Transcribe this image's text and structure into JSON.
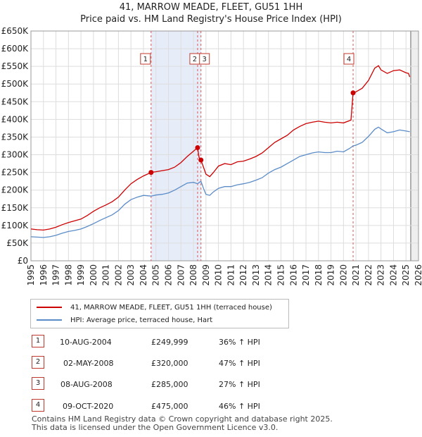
{
  "title_line1": "41, MARROW MEADE, FLEET, GU51 1HH",
  "title_line2": "Price paid vs. HM Land Registry's House Price Index (HPI)",
  "chart_data": {
    "type": "line",
    "xlim": [
      1995,
      2026
    ],
    "ylim": [
      0,
      650000
    ],
    "y_ticks": [
      {
        "value": 0,
        "label": "£0"
      },
      {
        "value": 50000,
        "label": "£50K"
      },
      {
        "value": 100000,
        "label": "£100K"
      },
      {
        "value": 150000,
        "label": "£150K"
      },
      {
        "value": 200000,
        "label": "£200K"
      },
      {
        "value": 250000,
        "label": "£250K"
      },
      {
        "value": 300000,
        "label": "£300K"
      },
      {
        "value": 350000,
        "label": "£350K"
      },
      {
        "value": 400000,
        "label": "£400K"
      },
      {
        "value": 450000,
        "label": "£450K"
      },
      {
        "value": 500000,
        "label": "£500K"
      },
      {
        "value": 550000,
        "label": "£550K"
      },
      {
        "value": 600000,
        "label": "£600K"
      },
      {
        "value": 650000,
        "label": "£650K"
      }
    ],
    "x_ticks": [
      "1995",
      "1996",
      "1997",
      "1998",
      "1999",
      "2000",
      "2001",
      "2002",
      "2003",
      "2004",
      "2005",
      "2006",
      "2007",
      "2008",
      "2009",
      "2010",
      "2011",
      "2012",
      "2013",
      "2014",
      "2015",
      "2016",
      "2017",
      "2018",
      "2019",
      "2020",
      "2021",
      "2022",
      "2023",
      "2024",
      "2025",
      "2026"
    ],
    "series": [
      {
        "name": "41, MARROW MEADE, FLEET, GU51 1HH (terraced house)",
        "color": "#cc0000",
        "points": [
          [
            1995.0,
            90000
          ],
          [
            1995.5,
            88000
          ],
          [
            1996.0,
            87000
          ],
          [
            1996.5,
            90000
          ],
          [
            1997.0,
            95000
          ],
          [
            1997.5,
            102000
          ],
          [
            1998.0,
            108000
          ],
          [
            1998.5,
            113000
          ],
          [
            1999.0,
            118000
          ],
          [
            1999.5,
            128000
          ],
          [
            2000.0,
            140000
          ],
          [
            2000.5,
            150000
          ],
          [
            2001.0,
            158000
          ],
          [
            2001.5,
            167000
          ],
          [
            2002.0,
            180000
          ],
          [
            2002.5,
            200000
          ],
          [
            2003.0,
            218000
          ],
          [
            2003.5,
            230000
          ],
          [
            2004.0,
            240000
          ],
          [
            2004.61,
            249999
          ],
          [
            2005.0,
            252000
          ],
          [
            2005.5,
            255000
          ],
          [
            2006.0,
            258000
          ],
          [
            2006.5,
            265000
          ],
          [
            2007.0,
            278000
          ],
          [
            2007.5,
            295000
          ],
          [
            2008.0,
            310000
          ],
          [
            2008.33,
            320000
          ],
          [
            2008.45,
            292000
          ],
          [
            2008.6,
            285000
          ],
          [
            2008.8,
            265000
          ],
          [
            2009.0,
            245000
          ],
          [
            2009.3,
            238000
          ],
          [
            2009.6,
            250000
          ],
          [
            2010.0,
            268000
          ],
          [
            2010.5,
            275000
          ],
          [
            2011.0,
            272000
          ],
          [
            2011.5,
            280000
          ],
          [
            2012.0,
            282000
          ],
          [
            2012.5,
            288000
          ],
          [
            2013.0,
            295000
          ],
          [
            2013.5,
            305000
          ],
          [
            2014.0,
            320000
          ],
          [
            2014.5,
            335000
          ],
          [
            2015.0,
            345000
          ],
          [
            2015.5,
            355000
          ],
          [
            2016.0,
            370000
          ],
          [
            2016.5,
            380000
          ],
          [
            2017.0,
            388000
          ],
          [
            2017.5,
            392000
          ],
          [
            2018.0,
            395000
          ],
          [
            2018.5,
            392000
          ],
          [
            2019.0,
            390000
          ],
          [
            2019.5,
            392000
          ],
          [
            2020.0,
            390000
          ],
          [
            2020.6,
            398000
          ],
          [
            2020.77,
            475000
          ],
          [
            2021.0,
            478000
          ],
          [
            2021.5,
            488000
          ],
          [
            2022.0,
            510000
          ],
          [
            2022.5,
            545000
          ],
          [
            2022.8,
            552000
          ],
          [
            2023.0,
            540000
          ],
          [
            2023.5,
            530000
          ],
          [
            2024.0,
            538000
          ],
          [
            2024.5,
            540000
          ],
          [
            2025.0,
            532000
          ],
          [
            2025.2,
            530000
          ],
          [
            2025.3,
            520000
          ]
        ]
      },
      {
        "name": "HPI: Average price, terraced house, Hart",
        "color": "#5b8cc8",
        "points": [
          [
            1995.0,
            68000
          ],
          [
            1995.5,
            67000
          ],
          [
            1996.0,
            66000
          ],
          [
            1996.5,
            68000
          ],
          [
            1997.0,
            72000
          ],
          [
            1997.5,
            78000
          ],
          [
            1998.0,
            83000
          ],
          [
            1998.5,
            86000
          ],
          [
            1999.0,
            90000
          ],
          [
            1999.5,
            97000
          ],
          [
            2000.0,
            105000
          ],
          [
            2000.5,
            114000
          ],
          [
            2001.0,
            122000
          ],
          [
            2001.5,
            130000
          ],
          [
            2002.0,
            142000
          ],
          [
            2002.5,
            160000
          ],
          [
            2003.0,
            173000
          ],
          [
            2003.5,
            180000
          ],
          [
            2004.0,
            185000
          ],
          [
            2004.61,
            183000
          ],
          [
            2005.0,
            186000
          ],
          [
            2005.5,
            188000
          ],
          [
            2006.0,
            192000
          ],
          [
            2006.5,
            200000
          ],
          [
            2007.0,
            210000
          ],
          [
            2007.5,
            220000
          ],
          [
            2008.0,
            222000
          ],
          [
            2008.33,
            218000
          ],
          [
            2008.6,
            225000
          ],
          [
            2008.8,
            205000
          ],
          [
            2009.0,
            188000
          ],
          [
            2009.3,
            185000
          ],
          [
            2009.6,
            195000
          ],
          [
            2010.0,
            205000
          ],
          [
            2010.5,
            210000
          ],
          [
            2011.0,
            210000
          ],
          [
            2011.5,
            215000
          ],
          [
            2012.0,
            218000
          ],
          [
            2012.5,
            222000
          ],
          [
            2013.0,
            228000
          ],
          [
            2013.5,
            235000
          ],
          [
            2014.0,
            248000
          ],
          [
            2014.5,
            258000
          ],
          [
            2015.0,
            265000
          ],
          [
            2015.5,
            275000
          ],
          [
            2016.0,
            285000
          ],
          [
            2016.5,
            295000
          ],
          [
            2017.0,
            300000
          ],
          [
            2017.5,
            305000
          ],
          [
            2018.0,
            308000
          ],
          [
            2018.5,
            306000
          ],
          [
            2019.0,
            306000
          ],
          [
            2019.5,
            310000
          ],
          [
            2020.0,
            308000
          ],
          [
            2020.5,
            318000
          ],
          [
            2020.77,
            325000
          ],
          [
            2021.0,
            327000
          ],
          [
            2021.5,
            335000
          ],
          [
            2022.0,
            352000
          ],
          [
            2022.5,
            372000
          ],
          [
            2022.8,
            378000
          ],
          [
            2023.0,
            373000
          ],
          [
            2023.5,
            362000
          ],
          [
            2024.0,
            365000
          ],
          [
            2024.5,
            370000
          ],
          [
            2025.0,
            367000
          ],
          [
            2025.3,
            365000
          ]
        ]
      }
    ],
    "transactions": [
      {
        "id": "1",
        "x": 2004.61,
        "value": 249999
      },
      {
        "id": "2",
        "x": 2008.33,
        "value": 320000
      },
      {
        "id": "3",
        "x": 2008.6,
        "value": 285000
      },
      {
        "id": "4",
        "x": 2020.77,
        "value": 475000
      }
    ],
    "shaded_ranges": [
      [
        2004.61,
        2008.6
      ],
      [
        2025.38,
        2026
      ]
    ]
  },
  "legend": {
    "property_label": "41, MARROW MEADE, FLEET, GU51 1HH (terraced house)",
    "hpi_label": "HPI: Average price, terraced house, Hart",
    "property_color": "#cc0000",
    "hpi_color": "#5b8cc8"
  },
  "transactions_table": [
    {
      "id": "1",
      "date": "10-AUG-2004",
      "price": "£249,999",
      "hpi": "36% ↑ HPI"
    },
    {
      "id": "2",
      "date": "02-MAY-2008",
      "price": "£320,000",
      "hpi": "47% ↑ HPI"
    },
    {
      "id": "3",
      "date": "08-AUG-2008",
      "price": "£285,000",
      "hpi": "27% ↑ HPI"
    },
    {
      "id": "4",
      "date": "09-OCT-2020",
      "price": "£475,000",
      "hpi": "46% ↑ HPI"
    }
  ],
  "footer": {
    "line1": "Contains HM Land Registry data © Crown copyright and database right 2025.",
    "line2": "This data is licensed under the Open Government Licence v3.0."
  }
}
